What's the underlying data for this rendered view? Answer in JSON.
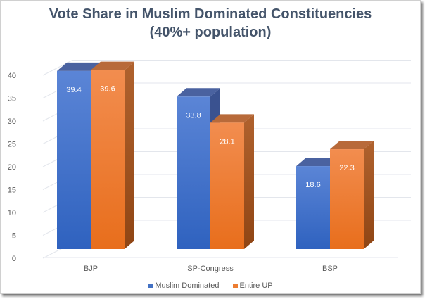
{
  "chart_data": {
    "type": "bar",
    "title": "Vote Share in Muslim Dominated Constituencies",
    "subtitle": "(40%+ population)",
    "categories": [
      "BJP",
      "SP-Congress",
      "BSP"
    ],
    "series": [
      {
        "name": "Muslim Dominated",
        "values": [
          39.4,
          33.8,
          18.6
        ],
        "color": "#4472c4"
      },
      {
        "name": "Entire UP",
        "values": [
          39.6,
          28.1,
          22.3
        ],
        "color": "#ed7d31"
      }
    ],
    "xlabel": "",
    "ylabel": "",
    "ylim": [
      0,
      40
    ],
    "yticks": [
      0,
      5,
      10,
      15,
      20,
      25,
      30,
      35,
      40
    ],
    "grid": true,
    "legend_position": "bottom",
    "style": "3d-clustered-column",
    "data_labels": true
  },
  "header": {
    "title_line1": "Vote Share in Muslim Dominated Constituencies",
    "title_line2": "(40%+ population)"
  },
  "legend": {
    "items": [
      {
        "label": "Muslim Dominated",
        "color": "#4472c4"
      },
      {
        "label": "Entire UP",
        "color": "#ed7d31"
      }
    ]
  }
}
